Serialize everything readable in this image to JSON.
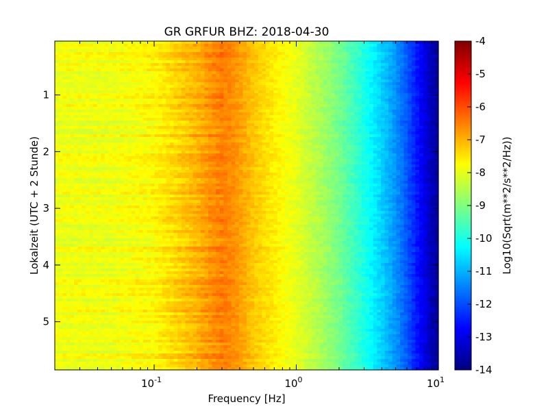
{
  "chart_data": {
    "type": "heatmap",
    "title": "GR GRFUR BHZ: 2018-04-30",
    "xlabel": "Frequency [Hz]",
    "ylabel": "Lokalzeit (UTC + 2 Stunde)",
    "x_scale": "log",
    "xlim": [
      0.02,
      10
    ],
    "x_ticks": [
      {
        "value": 0.1,
        "base": "10",
        "exp": "-1"
      },
      {
        "value": 1,
        "base": "10",
        "exp": "0"
      },
      {
        "value": 10,
        "base": "10",
        "exp": "1"
      }
    ],
    "ylim": [
      0.05,
      5.85
    ],
    "y_inverted": true,
    "y_ticks": [
      {
        "value": 1,
        "label": "1"
      },
      {
        "value": 2,
        "label": "2"
      },
      {
        "value": 3,
        "label": "3"
      },
      {
        "value": 4,
        "label": "4"
      },
      {
        "value": 5,
        "label": "5"
      }
    ],
    "colormap": "jet",
    "colorbar": {
      "label": "Log10(Sqrt(m**2/s**2/Hz))",
      "min": -14,
      "max": -4,
      "ticks": [
        "-4",
        "-5",
        "-6",
        "-7",
        "-8",
        "-9",
        "-10",
        "-11",
        "-12",
        "-13",
        "-14"
      ]
    },
    "profile": {
      "description_units": "log10 amplitude vs frequency (Hz), approximate mean across time",
      "freq": [
        0.02,
        0.05,
        0.1,
        0.15,
        0.2,
        0.25,
        0.3,
        0.35,
        0.4,
        0.5,
        0.7,
        1.0,
        1.5,
        2.0,
        3.0,
        4.0,
        5.0,
        6.0,
        7.0,
        8.0,
        9.0,
        10.0
      ],
      "value": [
        -7.9,
        -7.9,
        -7.7,
        -7.3,
        -7.0,
        -6.7,
        -6.5,
        -6.6,
        -6.8,
        -7.2,
        -7.6,
        -8.0,
        -8.6,
        -9.1,
        -10.0,
        -10.7,
        -11.3,
        -11.9,
        -12.5,
        -13.0,
        -13.5,
        -13.7
      ]
    },
    "grid": false
  }
}
